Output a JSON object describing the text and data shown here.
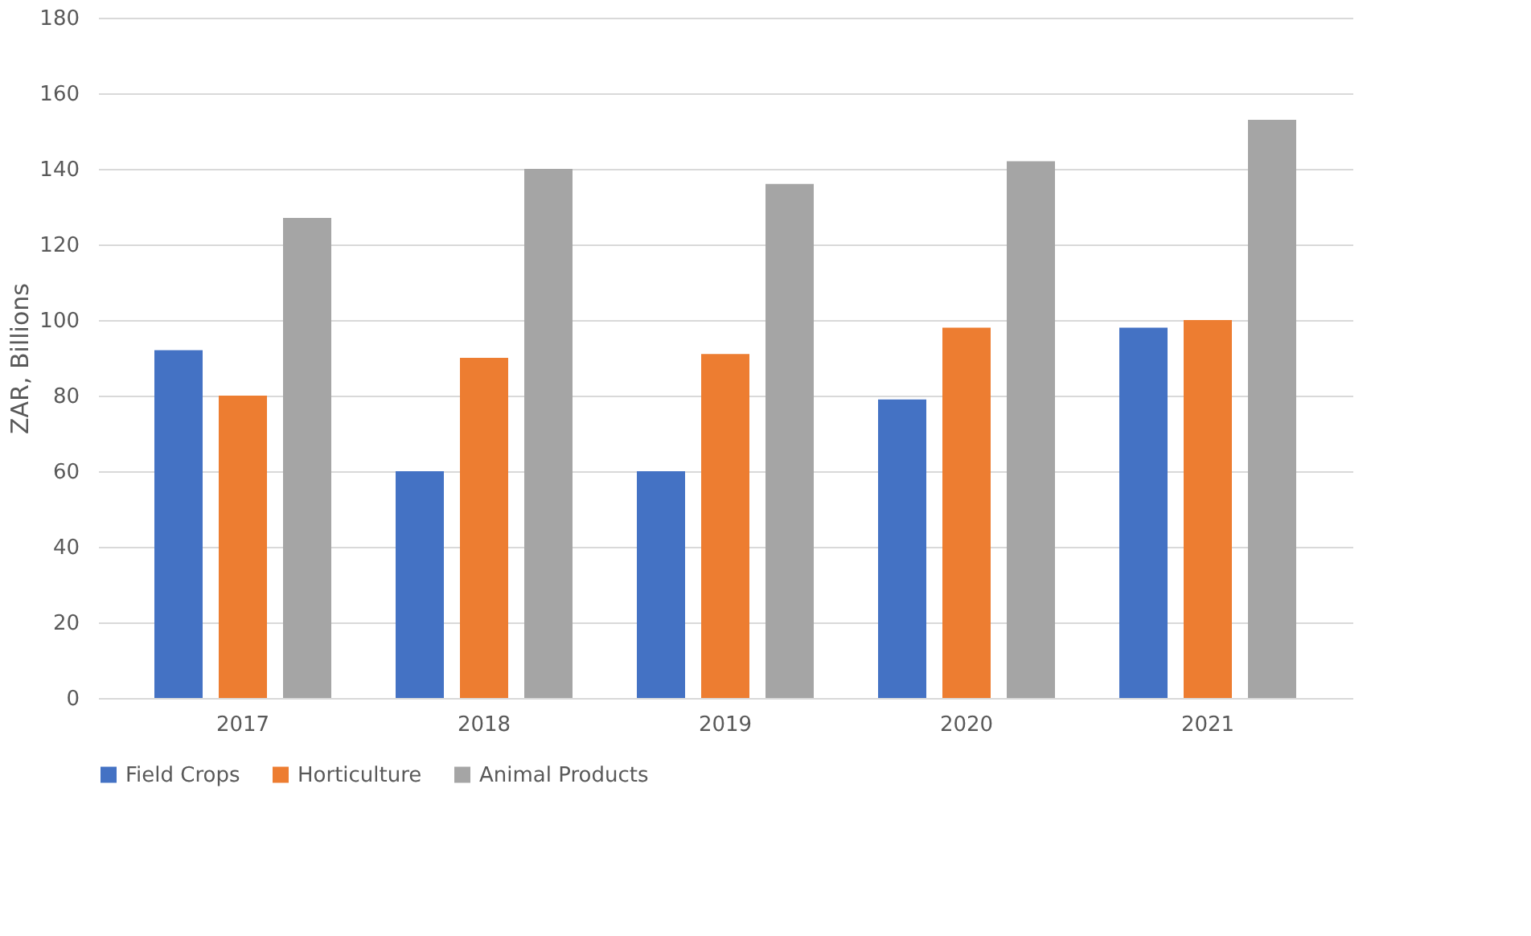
{
  "chart_data": {
    "type": "bar",
    "ylabel": "ZAR, Billions",
    "categories": [
      "2017",
      "2018",
      "2019",
      "2020",
      "2021"
    ],
    "series": [
      {
        "name": "Field Crops",
        "color": "#4472c4",
        "values": [
          92,
          60,
          60,
          79,
          98
        ]
      },
      {
        "name": "Horticulture",
        "color": "#ed7d31",
        "values": [
          80,
          90,
          91,
          98,
          100
        ]
      },
      {
        "name": "Animal Products",
        "color": "#a5a5a5",
        "values": [
          127,
          140,
          136,
          142,
          153
        ]
      }
    ],
    "ylim": [
      0,
      180
    ],
    "yticks": [
      0,
      20,
      40,
      60,
      80,
      100,
      120,
      140,
      160,
      180
    ],
    "grid": "y",
    "legend": "bottom"
  }
}
